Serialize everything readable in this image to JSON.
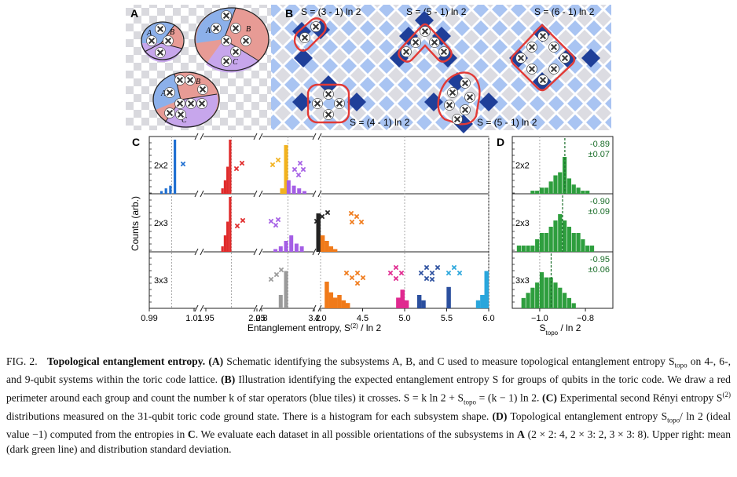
{
  "panel_labels": {
    "a": "A",
    "b": "B",
    "c": "C",
    "d": "D"
  },
  "panel_a": {
    "regions": [
      "A",
      "B",
      "C"
    ]
  },
  "panel_b": {
    "formulas": [
      "S = (3 - 1) ln 2",
      "S = (5 - 1) ln 2",
      "S = (6 - 1) ln 2",
      "S = (4 - 1) ln 2",
      "S = (5 - 1) ln 2"
    ]
  },
  "panel_c": {
    "ylabel": "Counts (arb.)",
    "xlabel": "Entanglement entropy, S",
    "xlabel_sup": "(2)",
    "xlabel_tail": " / ln 2",
    "row_labels": [
      "2x2",
      "2x3",
      "3x3"
    ],
    "x_ticks": [
      {
        "label": "0.99",
        "value": 0.99
      },
      {
        "label": "1.01",
        "value": 1.01
      },
      {
        "label": "1.95",
        "value": 1.95
      },
      {
        "label": "2.05",
        "value": 2.05
      },
      {
        "label": "2.8",
        "value": 2.8
      },
      {
        "label": "3.2",
        "value": 3.2
      },
      {
        "label": "4.0",
        "value": 4.0
      },
      {
        "label": "4.5",
        "value": 4.5
      },
      {
        "label": "5.0",
        "value": 5.0
      },
      {
        "label": "5.5",
        "value": 5.5
      },
      {
        "label": "6.0",
        "value": 6.0
      }
    ],
    "reference_lines": [
      1.0,
      2.0,
      3.0,
      4.0,
      5.0,
      6.0
    ]
  },
  "panel_d": {
    "xlabel": "S",
    "xlabel_sub": "topo",
    "xlabel_tail": " / ln 2",
    "row_labels": [
      "2x2",
      "2x3",
      "3x3"
    ],
    "x_ticks": [
      "−1.0",
      "−0.8"
    ],
    "stats": [
      {
        "mean": "-0.89",
        "std": "±0.07"
      },
      {
        "mean": "-0.90",
        "std": "±0.09"
      },
      {
        "mean": "-0.95",
        "std": "±0.06"
      }
    ]
  },
  "chart_data": [
    {
      "type": "bar",
      "panel": "C",
      "ylabel": "Counts (arb.)",
      "xlabel": "Entanglement entropy, S(2) / ln 2",
      "x_breaks": [
        [
          1.01,
          1.95
        ],
        [
          2.05,
          2.8
        ],
        [
          3.2,
          4.0
        ]
      ],
      "series": [
        {
          "name": "2x2",
          "color": "#1f6fd1",
          "bins": [
            0.996,
            0.998,
            1.0,
            1.002
          ],
          "values": [
            1,
            2,
            3,
            20
          ]
        },
        {
          "name": "2x2",
          "color": "#e02a2a",
          "bins": [
            1.985,
            1.99,
            1.995,
            2.0
          ],
          "values": [
            2,
            5,
            10,
            20
          ]
        },
        {
          "name": "2x2",
          "color": "#f2b21f",
          "bins": [
            2.97,
            3.0
          ],
          "values": [
            2,
            18
          ]
        },
        {
          "name": "2x2",
          "color": "#a45ee5",
          "bins": [
            3.02,
            3.06,
            3.1,
            3.14
          ],
          "values": [
            5,
            3,
            2,
            1
          ]
        },
        {
          "name": "2x3",
          "color": "#e02a2a",
          "bins": [
            1.985,
            1.99,
            1.995,
            2.0
          ],
          "values": [
            2,
            6,
            11,
            20
          ]
        },
        {
          "name": "2x3",
          "color": "#a45ee5",
          "bins": [
            2.92,
            2.96,
            3.0,
            3.04,
            3.08,
            3.12
          ],
          "values": [
            1,
            2,
            4,
            6,
            3,
            2
          ]
        },
        {
          "name": "2x3",
          "color": "#222222",
          "bins": [
            3.96,
            3.98,
            4.0
          ],
          "values": [
            4,
            8,
            14
          ]
        },
        {
          "name": "2x3",
          "color": "#f07a1a",
          "bins": [
            4.05,
            4.1,
            4.15,
            4.2
          ],
          "values": [
            6,
            4,
            2,
            1
          ]
        },
        {
          "name": "3x3",
          "color": "#9a9a9a",
          "bins": [
            2.96,
            3.0
          ],
          "values": [
            5,
            14
          ]
        },
        {
          "name": "3x3",
          "color": "#f07a1a",
          "bins": [
            4.1,
            4.15,
            4.2,
            4.25,
            4.3,
            4.35
          ],
          "values": [
            10,
            6,
            4,
            5,
            3,
            2
          ]
        },
        {
          "name": "3x3",
          "color": "#e0298f",
          "bins": [
            4.95,
            5.0,
            5.05
          ],
          "values": [
            4,
            7,
            3
          ]
        },
        {
          "name": "3x3",
          "color": "#2b4f9e",
          "bins": [
            5.2,
            5.25,
            5.55
          ],
          "values": [
            5,
            3,
            8
          ]
        },
        {
          "name": "3x3",
          "color": "#2aa6dc",
          "bins": [
            5.9,
            5.95,
            6.0,
            6.05
          ],
          "values": [
            3,
            5,
            14,
            4
          ]
        }
      ]
    },
    {
      "type": "bar",
      "panel": "D",
      "xlabel": "S_topo / ln 2",
      "xlim": [
        -1.12,
        -0.68
      ],
      "series": [
        {
          "name": "2x2",
          "color": "#2e9e3e",
          "bins": [
            -1.03,
            -1.01,
            -0.99,
            -0.97,
            -0.95,
            -0.93,
            -0.91,
            -0.89,
            -0.87,
            -0.85,
            -0.83,
            -0.81,
            -0.79
          ],
          "values": [
            1,
            1,
            2,
            2,
            4,
            6,
            7,
            12,
            5,
            3,
            2,
            1,
            1
          ],
          "mean": -0.89,
          "std": 0.07
        },
        {
          "name": "2x3",
          "color": "#2e9e3e",
          "bins": [
            -1.09,
            -1.07,
            -1.05,
            -1.03,
            -1.01,
            -0.99,
            -0.97,
            -0.95,
            -0.93,
            -0.91,
            -0.89,
            -0.87,
            -0.85,
            -0.83,
            -0.81,
            -0.79,
            -0.77
          ],
          "values": [
            1,
            1,
            1,
            1,
            2,
            3,
            3,
            4,
            5,
            6,
            5,
            4,
            3,
            3,
            2,
            1,
            1
          ],
          "mean": -0.9,
          "std": 0.09
        },
        {
          "name": "3x3",
          "color": "#2e9e3e",
          "bins": [
            -1.07,
            -1.05,
            -1.03,
            -1.01,
            -0.99,
            -0.97,
            -0.95,
            -0.93,
            -0.91,
            -0.89,
            -0.87,
            -0.85
          ],
          "values": [
            2,
            3,
            4,
            5,
            7,
            6,
            6,
            5,
            4,
            3,
            2,
            1
          ],
          "mean": -0.95,
          "std": 0.06
        }
      ]
    }
  ],
  "caption": {
    "fig_label": "FIG. 2.",
    "title": "Topological entanglement entropy.",
    "part_a_label": "(A)",
    "part_a": " Schematic identifying the subsystems A, B, and C used to measure topological entanglement entropy S",
    "part_a_sub": "topo",
    "part_a_tail": " on 4-, 6-, and 9-qubit systems within the toric code lattice. ",
    "part_b_label": "(B)",
    "part_b": " Illustration identifying the expected entanglement entropy S for groups of qubits in the toric code. We draw a red perimeter around each group and count the number k of star operators (blue tiles) it crosses. S = k ln 2 + S",
    "part_b_sub": "topo",
    "part_b_tail": " = (k − 1) ln 2. ",
    "part_c_label": "(C)",
    "part_c": " Experimental second Rényi entropy S",
    "part_c_sup": "(2)",
    "part_c_tail": " distributions measured on the 31-qubit toric code ground state. There is a histogram for each subsystem shape. ",
    "part_d_label": "(D)",
    "part_d": " Topological entanglement entropy S",
    "part_d_sub": "topo",
    "part_d_tail": "/ ln 2 (ideal value −1) computed from the entropies in ",
    "part_d_ref": "C",
    "part_d_tail2": ". We evaluate each dataset in all possible orientations of the subsystems in ",
    "part_d_ref2": "A",
    "part_d_tail3": " (2 × 2: 4, 2 × 3: 2, 3 × 3: 8). Upper right: mean (dark green line) and distribution standard deviation."
  }
}
